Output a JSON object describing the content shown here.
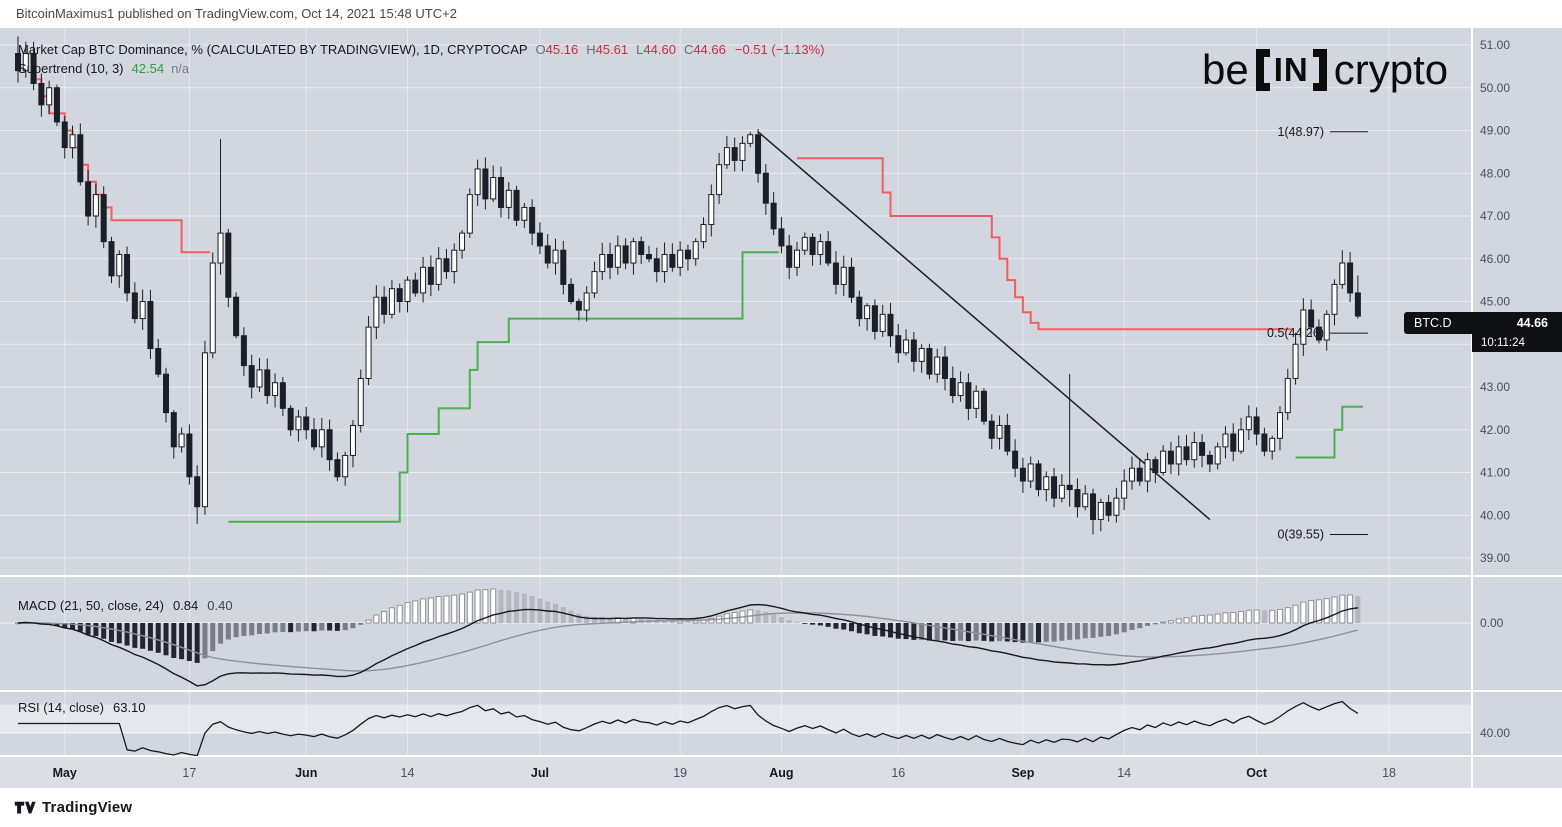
{
  "attribution": {
    "text": "BitcoinMaximus1 published on TradingView.com, Oct 14, 2021 15:48 UTC+2"
  },
  "legend": {
    "series_title": "Market Cap BTC Dominance, % (CALCULATED BY TRADINGVIEW), 1D, CRYPTOCAP",
    "open_label": "O",
    "open": "45.16",
    "high_label": "H",
    "high": "45.61",
    "low_label": "L",
    "low": "44.60",
    "close_label": "C",
    "close": "44.66",
    "change": "−0.51 (−1.13%)",
    "indicator_title": "Supertrend (10, 3)",
    "indicator_value": "42.54",
    "indicator_extra": "n/a"
  },
  "watermark": {
    "part1": "be",
    "part2": "IN",
    "part3": "crypto"
  },
  "price_badge": {
    "symbol": "BTC.D",
    "price": "44.66",
    "countdown": "10:11:24"
  },
  "macd_pane": {
    "title": "MACD (21, 50, close, 24)",
    "value1": "0.84",
    "value2": "0.40",
    "axis_label": "0.00"
  },
  "rsi_pane": {
    "title": "RSI (14, close)",
    "value": "63.10",
    "axis_label": "40.00"
  },
  "footer": {
    "brand": "TradingView"
  },
  "chart_data": {
    "type": "candlestick",
    "title": "Market Cap BTC Dominance, %",
    "symbol": "CRYPTOCAP BTC.D",
    "interval": "1D",
    "colors": {
      "bg": "#d2d6de",
      "axis_bg": "#dbdee5",
      "up": "#ffffff",
      "down": "#1b1f27",
      "supertrend_up": "#4caf50",
      "supertrend_down": "#ef5f5f",
      "trendline": "#1b1f27",
      "badge": "#0e1014"
    },
    "y_axis": {
      "min": 38.7,
      "max": 51.4,
      "ticks": [
        {
          "value": 51,
          "label": "51.00"
        },
        {
          "value": 50,
          "label": "50.00"
        },
        {
          "value": 49,
          "label": "49.00"
        },
        {
          "value": 48,
          "label": "48.00"
        },
        {
          "value": 47,
          "label": "47.00"
        },
        {
          "value": 46,
          "label": "46.00"
        },
        {
          "value": 45,
          "label": "45.00"
        },
        {
          "value": 44,
          "label": "44.00"
        },
        {
          "value": 43,
          "label": "43.00"
        },
        {
          "value": 42,
          "label": "42.00"
        },
        {
          "value": 41,
          "label": "41.00"
        },
        {
          "value": 40,
          "label": "40.00"
        },
        {
          "value": 39,
          "label": "39.00"
        }
      ]
    },
    "x_axis": {
      "ticks": [
        {
          "label": "May",
          "i": 6,
          "major": true
        },
        {
          "label": "17",
          "i": 22,
          "major": false
        },
        {
          "label": "Jun",
          "i": 37,
          "major": true
        },
        {
          "label": "14",
          "i": 50,
          "major": false
        },
        {
          "label": "Jul",
          "i": 67,
          "major": true
        },
        {
          "label": "19",
          "i": 85,
          "major": false
        },
        {
          "label": "Aug",
          "i": 98,
          "major": true
        },
        {
          "label": "16",
          "i": 113,
          "major": false
        },
        {
          "label": "Sep",
          "i": 129,
          "major": true
        },
        {
          "label": "14",
          "i": 142,
          "major": false
        },
        {
          "label": "Oct",
          "i": 159,
          "major": true
        },
        {
          "label": "18",
          "i": 176,
          "major": false
        }
      ]
    },
    "first_open": 50.8,
    "closes": [
      50.4,
      50.8,
      50.1,
      49.6,
      50.0,
      49.2,
      48.6,
      48.9,
      47.8,
      47.0,
      47.5,
      46.4,
      45.6,
      46.1,
      45.2,
      44.6,
      45.0,
      43.9,
      43.3,
      42.4,
      41.6,
      41.9,
      40.9,
      40.2,
      43.8,
      45.9,
      46.6,
      45.1,
      44.2,
      43.5,
      43.0,
      43.4,
      42.8,
      43.1,
      42.5,
      42.0,
      42.3,
      42.0,
      41.6,
      42.0,
      41.3,
      40.9,
      41.4,
      42.1,
      43.2,
      44.4,
      45.1,
      44.7,
      45.3,
      45.0,
      45.5,
      45.2,
      45.8,
      45.4,
      46.0,
      45.7,
      46.2,
      46.6,
      47.5,
      48.1,
      47.4,
      47.9,
      47.2,
      47.6,
      46.9,
      47.2,
      46.6,
      46.3,
      45.9,
      46.2,
      45.4,
      45.0,
      44.8,
      45.2,
      45.7,
      46.1,
      45.8,
      46.3,
      45.9,
      46.4,
      46.1,
      46.0,
      45.7,
      46.1,
      45.8,
      46.2,
      46.0,
      46.4,
      46.8,
      47.5,
      48.2,
      48.6,
      48.3,
      48.7,
      48.9,
      48.0,
      47.3,
      46.7,
      46.3,
      45.8,
      46.2,
      46.5,
      46.1,
      46.4,
      45.9,
      45.4,
      45.8,
      45.1,
      44.6,
      44.9,
      44.3,
      44.7,
      44.2,
      43.8,
      44.1,
      43.6,
      43.9,
      43.3,
      43.7,
      43.2,
      42.8,
      43.1,
      42.5,
      42.9,
      42.2,
      41.8,
      42.1,
      41.5,
      41.1,
      40.8,
      41.2,
      40.6,
      40.9,
      40.4,
      40.7,
      40.6,
      40.2,
      40.5,
      39.9,
      40.3,
      40.0,
      40.4,
      40.8,
      41.1,
      40.8,
      41.3,
      41.0,
      41.5,
      41.2,
      41.6,
      41.3,
      41.7,
      41.4,
      41.2,
      41.6,
      41.9,
      41.5,
      42.0,
      42.3,
      41.9,
      41.5,
      41.8,
      42.4,
      43.2,
      44.0,
      44.8,
      44.4,
      44.1,
      44.7,
      45.4,
      45.9,
      45.2,
      44.66
    ],
    "wick_overrides": {
      "0": {
        "high": 51.2
      },
      "23": {
        "low": 39.8
      },
      "26": {
        "high": 48.8
      },
      "94": {
        "high": 48.97
      },
      "135": {
        "high": 43.3,
        "low": 40.2
      },
      "138": {
        "low": 39.55
      },
      "170": {
        "high": 46.2
      },
      "172": {
        "high": 45.61,
        "low": 44.6
      }
    },
    "supertrend_segments": [
      {
        "trend": "down",
        "color": "#ef5f5f",
        "points": [
          [
            1,
            50.8
          ],
          [
            2,
            50.2
          ],
          [
            3,
            49.8
          ],
          [
            4,
            49.4
          ],
          [
            6,
            49.0
          ],
          [
            7,
            48.6
          ],
          [
            8,
            48.2
          ],
          [
            9,
            47.8
          ],
          [
            10,
            47.5
          ],
          [
            11,
            47.2
          ],
          [
            12,
            46.9
          ],
          [
            20,
            46.9
          ],
          [
            21,
            46.15
          ],
          [
            24,
            46.15
          ]
        ]
      },
      {
        "trend": "up",
        "color": "#4caf50",
        "points": [
          [
            27,
            39.85
          ],
          [
            48,
            39.85
          ],
          [
            49,
            41.0
          ],
          [
            50,
            41.9
          ],
          [
            53,
            41.9
          ],
          [
            54,
            42.5
          ],
          [
            57,
            42.5
          ],
          [
            58,
            43.4
          ],
          [
            59,
            44.05
          ],
          [
            62,
            44.05
          ],
          [
            63,
            44.6
          ],
          [
            92,
            44.6
          ],
          [
            93,
            46.15
          ],
          [
            97,
            46.15
          ]
        ]
      },
      {
        "trend": "down",
        "color": "#ef5f5f",
        "points": [
          [
            100,
            48.35
          ],
          [
            110,
            48.35
          ],
          [
            111,
            47.55
          ],
          [
            112,
            47.0
          ],
          [
            124,
            47.0
          ],
          [
            125,
            46.5
          ],
          [
            126,
            46.0
          ],
          [
            127,
            45.5
          ],
          [
            128,
            45.1
          ],
          [
            129,
            44.75
          ],
          [
            130,
            44.5
          ],
          [
            131,
            44.35
          ],
          [
            163,
            44.35
          ]
        ]
      },
      {
        "trend": "up",
        "color": "#4caf50",
        "points": [
          [
            164,
            41.35
          ],
          [
            168,
            41.35
          ],
          [
            169,
            42.0
          ],
          [
            170,
            42.54
          ],
          [
            172,
            42.54
          ]
        ]
      }
    ],
    "trendline": {
      "points": [
        [
          95,
          48.97
        ],
        [
          153,
          39.9
        ]
      ]
    },
    "fib_levels": [
      {
        "label": "1(48.97)",
        "value": 48.97
      },
      {
        "label": "0.5(44.26)",
        "value": 44.26
      },
      {
        "label": "0(39.55)",
        "value": 39.55
      }
    ],
    "indicators": {
      "macd": {
        "fast": 21,
        "slow": 50,
        "signal": 24,
        "source": "close",
        "last_macd": 0.84,
        "last_signal": 0.4
      },
      "rsi": {
        "length": 14,
        "last": 63.1,
        "level_line": 40
      }
    }
  }
}
